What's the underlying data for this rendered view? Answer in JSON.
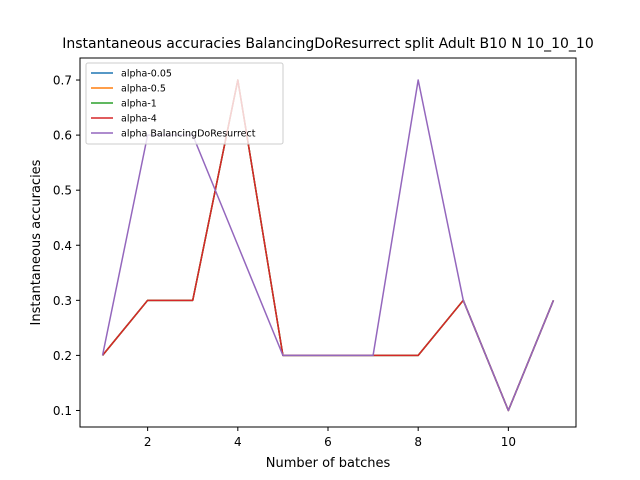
{
  "chart_data": {
    "type": "line",
    "title": "Instantaneous accuracies BalancingDoResurrect split Adult B10 N 10_10_10",
    "xlabel": "Number of batches",
    "ylabel": "Instantaneous accuracies",
    "xlim": [
      0.5,
      11.5
    ],
    "ylim": [
      0.07,
      0.74
    ],
    "xticks": [
      2,
      4,
      6,
      8,
      10
    ],
    "yticks": [
      0.1,
      0.2,
      0.3,
      0.4,
      0.5,
      0.6,
      0.7
    ],
    "ytick_labels": [
      "0.1",
      "0.2",
      "0.3",
      "0.4",
      "0.5",
      "0.6",
      "0.7"
    ],
    "grid": false,
    "legend_position": "top-left",
    "x": [
      1,
      2,
      3,
      4,
      5,
      6,
      7,
      8,
      9,
      10,
      11
    ],
    "series": [
      {
        "name": "alpha-0.05",
        "color": "#1f77b4",
        "values": [
          0.2,
          0.3,
          0.3,
          0.7,
          0.2,
          0.2,
          0.2,
          0.2,
          0.3,
          0.1,
          0.3
        ]
      },
      {
        "name": "alpha-0.5",
        "color": "#ff7f0e",
        "values": [
          0.2,
          0.3,
          0.3,
          0.7,
          0.2,
          0.2,
          0.2,
          0.2,
          0.3,
          0.1,
          0.3
        ]
      },
      {
        "name": "alpha-1",
        "color": "#2ca02c",
        "values": [
          0.2,
          0.3,
          0.3,
          0.7,
          0.2,
          0.2,
          0.2,
          0.2,
          0.3,
          0.1,
          0.3
        ]
      },
      {
        "name": "alpha-4",
        "color": "#d62728",
        "values": [
          0.2,
          0.3,
          0.3,
          0.7,
          0.2,
          0.2,
          0.2,
          0.2,
          0.3,
          0.1,
          0.3
        ]
      },
      {
        "name": "alpha BalancingDoResurrect",
        "color": "#9467bd",
        "values": [
          0.2,
          0.6,
          0.6,
          0.4,
          0.2,
          0.2,
          0.2,
          0.7,
          0.3,
          0.1,
          0.3
        ]
      }
    ]
  }
}
